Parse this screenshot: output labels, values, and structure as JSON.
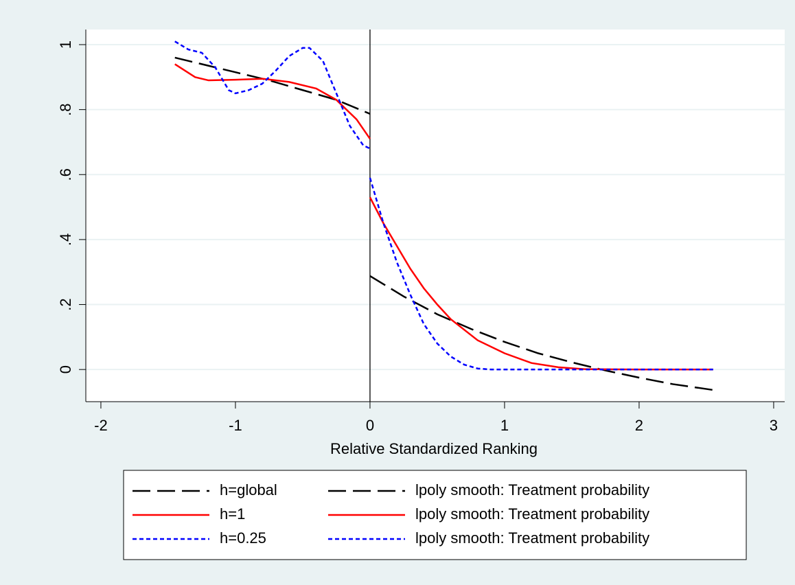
{
  "chart_data": {
    "type": "line",
    "x_label": "Relative Standardized Ranking",
    "xlim": [
      -2.112,
      3.082
    ],
    "xticks": [
      -2,
      -1,
      0,
      1,
      2,
      3
    ],
    "ylim": [
      -0.099,
      1.0465
    ],
    "yticks": [
      0,
      {
        "value": 0.2,
        "label": ".2"
      },
      {
        "value": 0.4,
        "label": ".4"
      },
      {
        "value": 0.6,
        "label": ".6"
      },
      {
        "value": 0.8,
        "label": ".8"
      },
      1
    ],
    "grid": true,
    "cutoff_line": 0,
    "series": [
      {
        "name": "h=global",
        "color": "#000000",
        "style": "longdash",
        "x": [
          -1.45,
          -1.25,
          -1,
          -0.75,
          -0.5,
          -0.25,
          0
        ],
        "values": [
          0.96,
          0.94,
          0.915,
          0.89,
          0.86,
          0.83,
          0.787
        ]
      },
      {
        "name": "lpoly smooth: Treatment probability",
        "color": "#000000",
        "style": "longdash",
        "x": [
          0,
          0.25,
          0.5,
          0.75,
          1,
          1.25,
          1.5,
          1.75,
          2,
          2.25,
          2.55
        ],
        "values": [
          0.288,
          0.225,
          0.17,
          0.125,
          0.085,
          0.05,
          0.022,
          -0.003,
          -0.025,
          -0.045,
          -0.063
        ]
      },
      {
        "name": "h=1",
        "color": "#ff0000",
        "style": "solid",
        "x": [
          -1.45,
          -1.3,
          -1.2,
          -1,
          -0.8,
          -0.6,
          -0.4,
          -0.25,
          -0.1,
          0
        ],
        "values": [
          0.94,
          0.9,
          0.89,
          0.892,
          0.895,
          0.885,
          0.865,
          0.83,
          0.77,
          0.71
        ]
      },
      {
        "name": "lpoly smooth: Treatment probability",
        "color": "#ff0000",
        "style": "solid",
        "x": [
          0,
          0.1,
          0.2,
          0.3,
          0.4,
          0.5,
          0.6,
          0.8,
          1,
          1.2,
          1.4,
          1.6,
          2,
          2.55
        ],
        "values": [
          0.53,
          0.45,
          0.38,
          0.31,
          0.25,
          0.2,
          0.155,
          0.09,
          0.05,
          0.02,
          0.007,
          0.001,
          0,
          0
        ]
      },
      {
        "name": "h=0.25",
        "color": "#0000ff",
        "style": "shortdash",
        "x": [
          -1.45,
          -1.35,
          -1.25,
          -1.15,
          -1.05,
          -1,
          -0.9,
          -0.8,
          -0.7,
          -0.6,
          -0.5,
          -0.45,
          -0.35,
          -0.25,
          -0.15,
          -0.05,
          0
        ],
        "values": [
          1.01,
          0.985,
          0.975,
          0.93,
          0.86,
          0.85,
          0.86,
          0.88,
          0.92,
          0.965,
          0.99,
          0.99,
          0.95,
          0.85,
          0.75,
          0.69,
          0.68
        ]
      },
      {
        "name": "lpoly smooth: Treatment probability",
        "color": "#0000ff",
        "style": "shortdash",
        "x": [
          0,
          0.1,
          0.2,
          0.3,
          0.4,
          0.5,
          0.6,
          0.7,
          0.8,
          0.9,
          2.55
        ],
        "values": [
          0.59,
          0.45,
          0.33,
          0.23,
          0.14,
          0.08,
          0.04,
          0.015,
          0.003,
          0,
          0
        ]
      }
    ]
  }
}
